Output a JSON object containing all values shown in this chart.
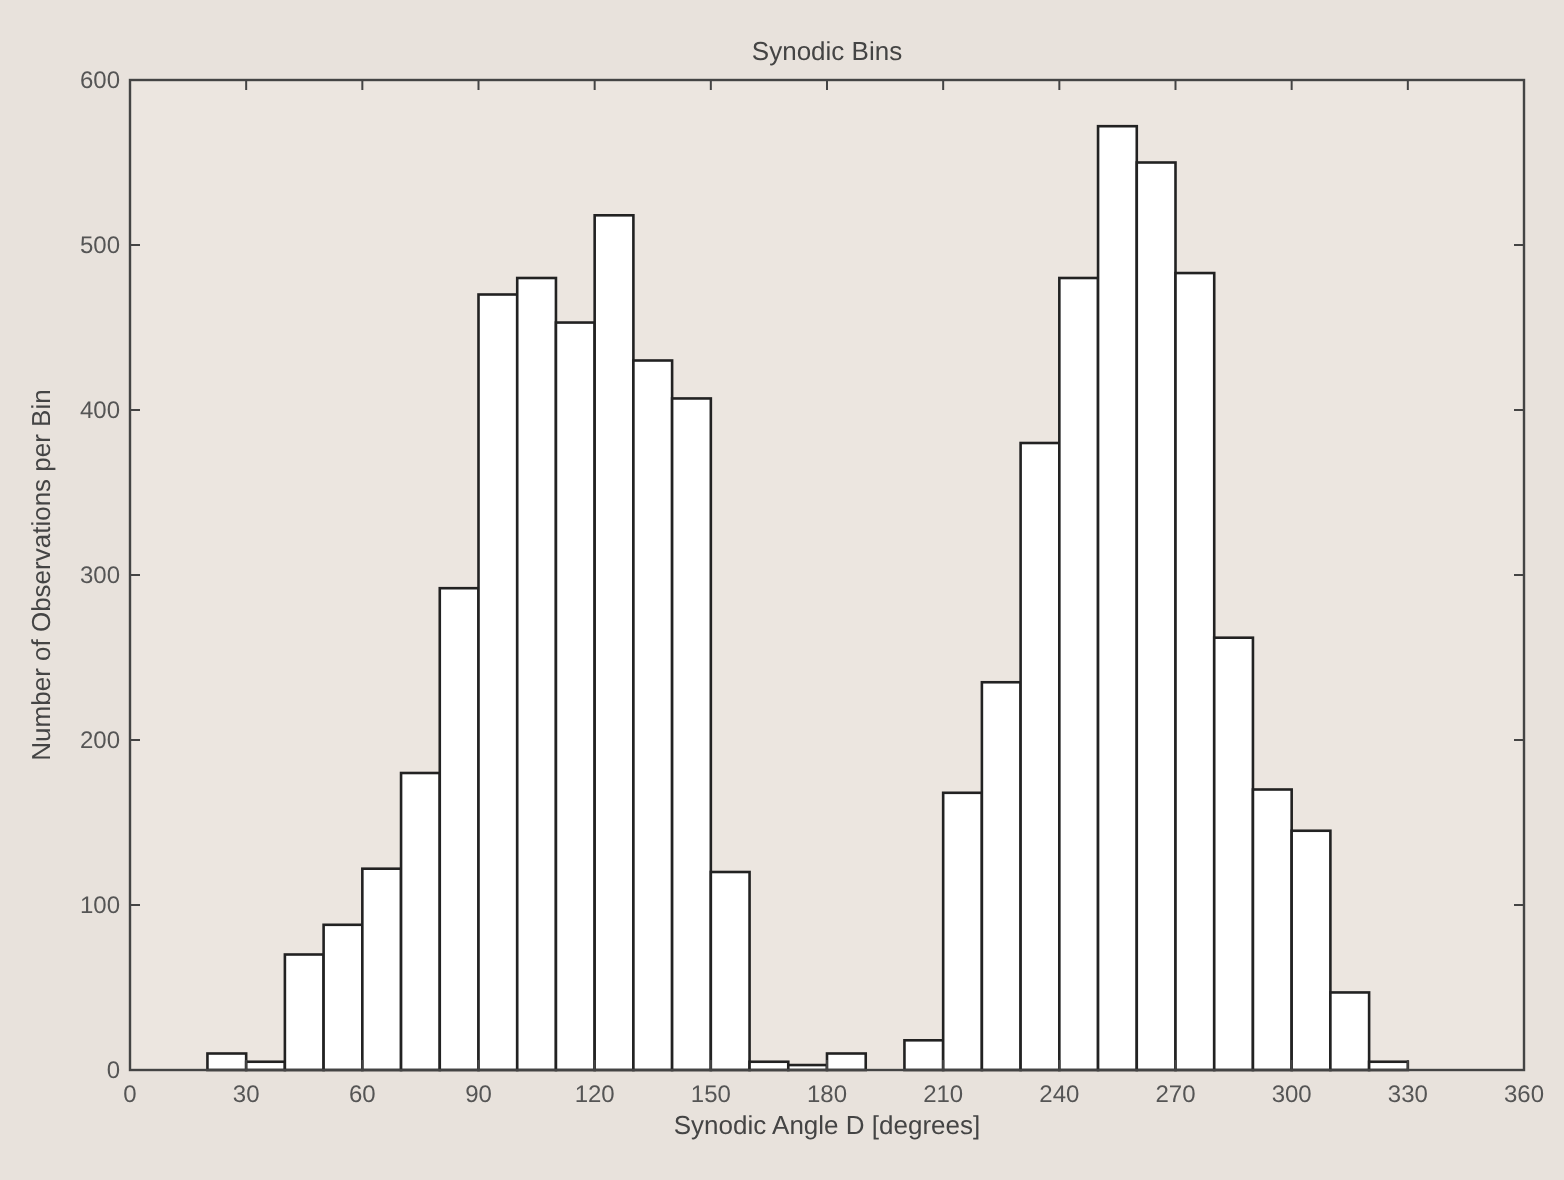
{
  "chart_data": {
    "type": "histogram",
    "title": "Synodic Bins",
    "xlabel": "Synodic Angle D [degrees]",
    "ylabel": "Number of Observations per Bin",
    "bins": [
      20,
      30,
      40,
      50,
      60,
      70,
      80,
      90,
      100,
      110,
      120,
      130,
      140,
      150,
      160,
      170,
      180,
      190,
      200,
      210,
      220,
      230,
      240,
      250,
      260,
      270,
      280,
      290,
      300,
      310,
      320,
      330
    ],
    "values": [
      10,
      5,
      70,
      88,
      122,
      180,
      292,
      470,
      480,
      453,
      518,
      430,
      407,
      120,
      5,
      3,
      10,
      0,
      18,
      168,
      235,
      380,
      480,
      572,
      550,
      483,
      262,
      170,
      145,
      47,
      5
    ],
    "color": "#ffffff",
    "xlim": [
      0,
      360
    ],
    "xticks": [
      0,
      30,
      60,
      90,
      120,
      150,
      180,
      210,
      240,
      270,
      300,
      330,
      360
    ],
    "ylim": [
      0,
      600
    ],
    "yticks": [
      0,
      100,
      200,
      300,
      400,
      500,
      600
    ],
    "grid": false
  }
}
